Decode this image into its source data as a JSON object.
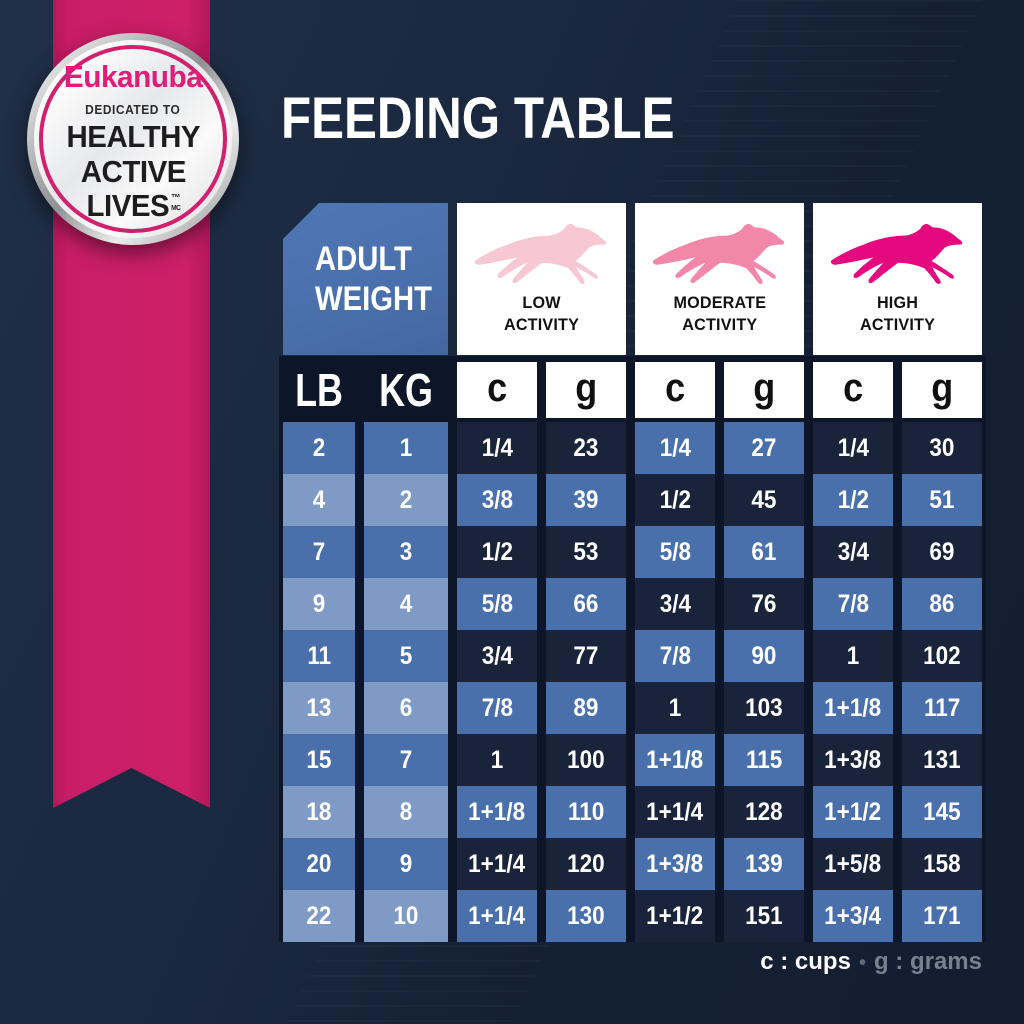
{
  "page": {
    "title": "FEEDING TABLE"
  },
  "badge": {
    "brand": "Eukanuba",
    "dedicated": "DEDICATED TO",
    "line1": "HEALTHY",
    "line2": "ACTIVE",
    "line3": "LIVES",
    "tm": "™",
    "mc": "MC"
  },
  "table": {
    "corner": {
      "line1": "ADULT",
      "line2": "WEIGHT"
    },
    "weight_units": [
      "LB",
      "KG"
    ],
    "unit_letters": [
      "c",
      "g",
      "c",
      "g",
      "c",
      "g"
    ],
    "activities": [
      {
        "line1": "LOW",
        "line2": "ACTIVITY",
        "dog_color": "#F7C7D3"
      },
      {
        "line1": "MODERATE",
        "line2": "ACTIVITY",
        "dog_color": "#F287A9"
      },
      {
        "line1": "HIGH",
        "line2": "ACTIVITY",
        "dog_color": "#E5087E"
      }
    ],
    "rows": [
      {
        "lb": "2",
        "kg": "1",
        "values": [
          "1/4",
          "23",
          "1/4",
          "27",
          "1/4",
          "30"
        ]
      },
      {
        "lb": "4",
        "kg": "2",
        "values": [
          "3/8",
          "39",
          "1/2",
          "45",
          "1/2",
          "51"
        ]
      },
      {
        "lb": "7",
        "kg": "3",
        "values": [
          "1/2",
          "53",
          "5/8",
          "61",
          "3/4",
          "69"
        ]
      },
      {
        "lb": "9",
        "kg": "4",
        "values": [
          "5/8",
          "66",
          "3/4",
          "76",
          "7/8",
          "86"
        ]
      },
      {
        "lb": "11",
        "kg": "5",
        "values": [
          "3/4",
          "77",
          "7/8",
          "90",
          "1",
          "102"
        ]
      },
      {
        "lb": "13",
        "kg": "6",
        "values": [
          "7/8",
          "89",
          "1",
          "103",
          "1+1/8",
          "117"
        ]
      },
      {
        "lb": "15",
        "kg": "7",
        "values": [
          "1",
          "100",
          "1+1/8",
          "115",
          "1+3/8",
          "131"
        ]
      },
      {
        "lb": "18",
        "kg": "8",
        "values": [
          "1+1/8",
          "110",
          "1+1/4",
          "128",
          "1+1/2",
          "145"
        ]
      },
      {
        "lb": "20",
        "kg": "9",
        "values": [
          "1+1/4",
          "120",
          "1+3/8",
          "139",
          "1+5/8",
          "158"
        ]
      },
      {
        "lb": "22",
        "kg": "10",
        "values": [
          "1+1/4",
          "130",
          "1+1/2",
          "151",
          "1+3/4",
          "171"
        ]
      }
    ]
  },
  "legend": {
    "cups": "c : cups",
    "sep": "•",
    "grams": "g : grams"
  },
  "colors": {
    "background": "#1B2940",
    "table_backdrop": "#0C1628",
    "ribbon_pink": "#C91D67",
    "brand_pink": "#E31C79",
    "cell_medium_blue": "#4A70AC",
    "cell_light_blue": "#7F9AC5",
    "cell_dark_navy": "#192339",
    "header_blue": "#4A70AC",
    "legend_gray": "#76818F",
    "text_white": "#FFFFFF",
    "text_black": "#121212"
  },
  "chart_data": {
    "type": "table",
    "title": "FEEDING TABLE",
    "columns": [
      "Adult Weight LB",
      "Adult Weight KG",
      "Low Activity c (cups)",
      "Low Activity g (grams)",
      "Moderate Activity c (cups)",
      "Moderate Activity g (grams)",
      "High Activity c (cups)",
      "High Activity g (grams)"
    ],
    "rows": [
      [
        2,
        1,
        "1/4",
        23,
        "1/4",
        27,
        "1/4",
        30
      ],
      [
        4,
        2,
        "3/8",
        39,
        "1/2",
        45,
        "1/2",
        51
      ],
      [
        7,
        3,
        "1/2",
        53,
        "5/8",
        61,
        "3/4",
        69
      ],
      [
        9,
        4,
        "5/8",
        66,
        "3/4",
        76,
        "7/8",
        86
      ],
      [
        11,
        5,
        "3/4",
        77,
        "7/8",
        90,
        "1",
        102
      ],
      [
        13,
        6,
        "7/8",
        89,
        "1",
        103,
        "1+1/8",
        117
      ],
      [
        15,
        7,
        "1",
        100,
        "1+1/8",
        115,
        "1+3/8",
        131
      ],
      [
        18,
        8,
        "1+1/8",
        110,
        "1+1/4",
        128,
        "1+1/2",
        145
      ],
      [
        20,
        9,
        "1+1/4",
        120,
        "1+3/8",
        139,
        "1+5/8",
        158
      ],
      [
        22,
        10,
        "1+1/4",
        130,
        "1+1/2",
        151,
        "1+3/4",
        171
      ]
    ],
    "legend_note": "c : cups • g : grams"
  }
}
